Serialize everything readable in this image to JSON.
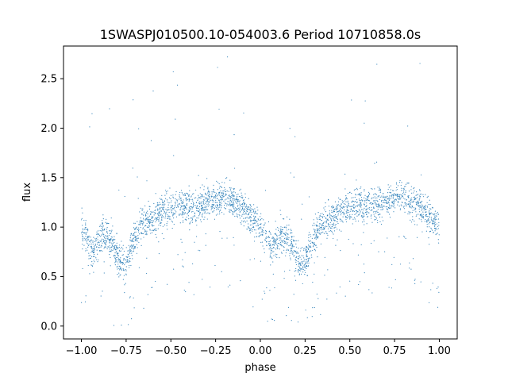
{
  "chart_data": {
    "type": "scatter",
    "title": "1SWASPJ010500.10-054003.6 Period 10710858.0s",
    "xlabel": "phase",
    "ylabel": "flux",
    "xlim": [
      -1.1,
      1.1
    ],
    "ylim": [
      -0.13,
      2.83
    ],
    "xticks": [
      -1.0,
      -0.75,
      -0.5,
      -0.25,
      0.0,
      0.25,
      0.5,
      0.75,
      1.0
    ],
    "xtick_labels": [
      "−1.00",
      "−0.75",
      "−0.50",
      "−0.25",
      "0.00",
      "0.25",
      "0.50",
      "0.75",
      "1.00"
    ],
    "yticks": [
      0.0,
      0.5,
      1.0,
      1.5,
      2.0,
      2.5
    ],
    "ytick_labels": [
      "0.0",
      "0.5",
      "1.0",
      "1.5",
      "2.0",
      "2.5"
    ],
    "grid": false,
    "legend": "none",
    "marker_color": "#1f77b4",
    "series": [
      {
        "profile": {
          "phase": [
            0.0,
            0.03,
            0.06,
            0.09,
            0.12,
            0.15,
            0.18,
            0.21,
            0.24,
            0.27,
            0.3,
            0.33,
            0.36,
            0.39,
            0.42,
            0.45,
            0.5,
            0.55,
            0.6,
            0.65,
            0.7,
            0.75,
            0.8,
            0.85,
            0.9,
            0.95,
            1.0
          ],
          "flux": [
            1.0,
            0.9,
            0.75,
            0.85,
            0.92,
            0.9,
            0.8,
            0.65,
            0.6,
            0.75,
            0.92,
            1.0,
            1.05,
            1.08,
            1.1,
            1.15,
            1.2,
            1.22,
            1.22,
            1.2,
            1.25,
            1.28,
            1.3,
            1.25,
            1.2,
            1.1,
            1.0
          ]
        }
      }
    ]
  }
}
